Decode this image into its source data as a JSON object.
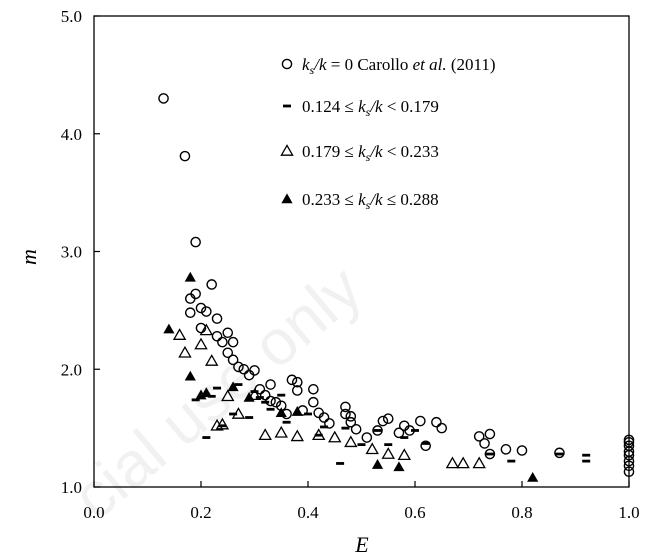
{
  "chart_data": {
    "type": "scatter",
    "title": "",
    "xlabel": "E",
    "ylabel": "m",
    "xlim": [
      0.0,
      1.0
    ],
    "ylim": [
      1.0,
      5.0
    ],
    "xticks": [
      "0.0",
      "0.2",
      "0.4",
      "0.6",
      "0.8",
      "1.0"
    ],
    "yticks": [
      "1.0",
      "2.0",
      "3.0",
      "4.0",
      "5.0"
    ],
    "grid": false,
    "legend_position": "top-right",
    "watermark": "cial use only",
    "series": [
      {
        "name": "ks/k = 0 Carollo et al. (2011)",
        "legend_parts": {
          "var1": "k",
          "sub1": "s",
          "var2": "/k",
          "rest": " = 0 Carollo ",
          "etal": "et al.",
          "year": " (2011)"
        },
        "marker": "open-circle",
        "x": [
          0.13,
          0.17,
          0.19,
          0.18,
          0.18,
          0.19,
          0.2,
          0.2,
          0.21,
          0.22,
          0.23,
          0.23,
          0.24,
          0.25,
          0.25,
          0.26,
          0.26,
          0.27,
          0.28,
          0.29,
          0.3,
          0.31,
          0.32,
          0.33,
          0.33,
          0.34,
          0.35,
          0.36,
          0.37,
          0.38,
          0.38,
          0.39,
          0.41,
          0.41,
          0.42,
          0.43,
          0.44,
          0.47,
          0.47,
          0.48,
          0.48,
          0.49,
          0.51,
          0.53,
          0.54,
          0.55,
          0.57,
          0.58,
          0.59,
          0.61,
          0.62,
          0.64,
          0.65,
          0.72,
          0.73,
          0.74,
          0.74,
          0.77,
          0.8,
          0.87,
          1.0,
          1.0,
          1.0,
          1.0,
          1.0,
          1.0,
          1.0,
          1.0
        ],
        "y": [
          4.3,
          3.81,
          3.08,
          2.6,
          2.48,
          2.64,
          2.52,
          2.35,
          2.49,
          2.72,
          2.43,
          2.28,
          2.23,
          2.31,
          2.14,
          2.23,
          2.08,
          2.02,
          2.0,
          1.95,
          1.99,
          1.83,
          1.78,
          1.87,
          1.73,
          1.72,
          1.69,
          1.62,
          1.91,
          1.89,
          1.82,
          1.65,
          1.83,
          1.72,
          1.63,
          1.59,
          1.54,
          1.68,
          1.62,
          1.6,
          1.55,
          1.49,
          1.42,
          1.48,
          1.56,
          1.58,
          1.46,
          1.52,
          1.48,
          1.56,
          1.35,
          1.55,
          1.5,
          1.43,
          1.37,
          1.45,
          1.28,
          1.32,
          1.31,
          1.29,
          1.4,
          1.38,
          1.35,
          1.3,
          1.27,
          1.22,
          1.18,
          1.13
        ]
      },
      {
        "name": "0.124 ≤ ks/k < 0.179",
        "legend_parts": {
          "pre": "0.124 ≤  ",
          "var1": "k",
          "sub1": "s",
          "var2": "/k",
          "post": "  < 0.179"
        },
        "marker": "dash",
        "x": [
          0.19,
          0.21,
          0.22,
          0.23,
          0.24,
          0.26,
          0.27,
          0.29,
          0.3,
          0.31,
          0.32,
          0.33,
          0.35,
          0.36,
          0.4,
          0.42,
          0.43,
          0.46,
          0.47,
          0.5,
          0.53,
          0.55,
          0.58,
          0.6,
          0.62,
          0.74,
          0.78,
          0.87,
          0.92,
          0.92
        ],
        "y": [
          1.74,
          1.42,
          1.77,
          1.84,
          1.52,
          1.62,
          1.87,
          1.59,
          1.81,
          1.76,
          1.72,
          1.66,
          1.78,
          1.55,
          1.62,
          1.44,
          1.51,
          1.2,
          1.5,
          1.36,
          1.48,
          1.36,
          1.42,
          1.48,
          1.37,
          1.28,
          1.22,
          1.28,
          1.27,
          1.22
        ]
      },
      {
        "name": "0.179 ≤ ks/k < 0.233",
        "legend_parts": {
          "pre": "0.179 ≤  ",
          "var1": "k",
          "sub1": "s",
          "var2": "/k",
          "post": " < 0.233"
        },
        "marker": "open-triangle",
        "x": [
          0.16,
          0.17,
          0.2,
          0.21,
          0.22,
          0.23,
          0.24,
          0.25,
          0.27,
          0.3,
          0.32,
          0.35,
          0.38,
          0.42,
          0.45,
          0.48,
          0.52,
          0.55,
          0.58,
          0.67,
          0.69,
          0.72
        ],
        "y": [
          2.29,
          2.14,
          2.21,
          2.33,
          2.07,
          1.52,
          1.53,
          1.77,
          1.62,
          1.78,
          1.44,
          1.46,
          1.43,
          1.44,
          1.42,
          1.38,
          1.32,
          1.28,
          1.27,
          1.2,
          1.2,
          1.2
        ]
      },
      {
        "name": "0.233 ≤ ks/k ≤ 0.288",
        "legend_parts": {
          "pre": "0.233 ≤  ",
          "var1": "k",
          "sub1": "s",
          "var2": "/k",
          "post": " ≤ 0.288"
        },
        "marker": "filled-triangle",
        "x": [
          0.14,
          0.18,
          0.18,
          0.2,
          0.21,
          0.26,
          0.29,
          0.35,
          0.38,
          0.53,
          0.57,
          0.82
        ],
        "y": [
          2.34,
          2.78,
          1.94,
          1.78,
          1.8,
          1.85,
          1.76,
          1.63,
          1.64,
          1.19,
          1.17,
          1.08
        ]
      }
    ]
  }
}
